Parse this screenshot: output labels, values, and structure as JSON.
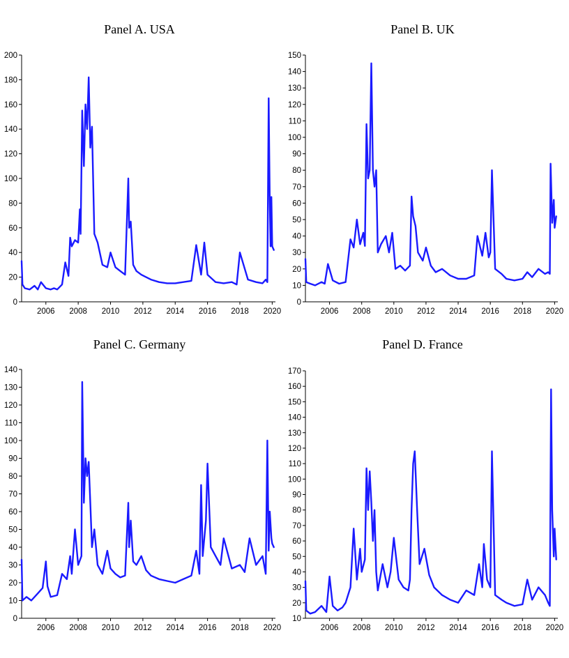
{
  "colors": {
    "series": "#1a1aff",
    "axis": "#000000",
    "background": "#ffffff"
  },
  "chart_data": [
    {
      "type": "line",
      "title": "Panel A. USA",
      "xlim": [
        2004.5,
        2020.2
      ],
      "ylim": [
        0,
        200
      ],
      "yticks": [
        0,
        20,
        40,
        60,
        80,
        100,
        120,
        140,
        160,
        180,
        200
      ],
      "xticks": [
        2006,
        2008,
        2010,
        2012,
        2014,
        2016,
        2018,
        2020
      ],
      "grid": false,
      "series": [
        {
          "x": [
            2004.5,
            2004.55,
            2004.7,
            2005.0,
            2005.3,
            2005.5,
            2005.7,
            2006.0,
            2006.3,
            2006.5,
            2006.7,
            2007.0,
            2007.2,
            2007.4,
            2007.5,
            2007.6,
            2007.8,
            2008.0,
            2008.1,
            2008.15,
            2008.25,
            2008.35,
            2008.45,
            2008.55,
            2008.65,
            2008.75,
            2008.85,
            2009.0,
            2009.2,
            2009.5,
            2009.8,
            2010.0,
            2010.3,
            2010.6,
            2010.9,
            2011.1,
            2011.15,
            2011.25,
            2011.4,
            2011.6,
            2011.9,
            2012.2,
            2012.5,
            2013.0,
            2013.5,
            2014.0,
            2014.5,
            2015.0,
            2015.3,
            2015.6,
            2015.8,
            2016.0,
            2016.5,
            2017.0,
            2017.5,
            2017.8,
            2018.0,
            2018.5,
            2019.0,
            2019.4,
            2019.6,
            2019.7,
            2019.78,
            2019.85,
            2019.9,
            2019.95,
            2020.0,
            2020.1
          ],
          "values": [
            33,
            14,
            11,
            10,
            13,
            10,
            16,
            11,
            10,
            11,
            10,
            14,
            32,
            21,
            52,
            45,
            50,
            48,
            75,
            55,
            155,
            110,
            160,
            140,
            182,
            125,
            142,
            55,
            48,
            30,
            28,
            40,
            28,
            25,
            22,
            100,
            60,
            65,
            30,
            25,
            22,
            20,
            18,
            16,
            15,
            15,
            16,
            17,
            46,
            22,
            48,
            22,
            16,
            15,
            16,
            14,
            40,
            18,
            16,
            15,
            18,
            16,
            165,
            80,
            45,
            85,
            45,
            42
          ]
        }
      ]
    },
    {
      "type": "line",
      "title": "Panel B. UK",
      "xlim": [
        2004.5,
        2020.2
      ],
      "ylim": [
        0,
        150
      ],
      "yticks": [
        0,
        10,
        20,
        30,
        40,
        50,
        60,
        70,
        80,
        90,
        100,
        110,
        120,
        130,
        140,
        150
      ],
      "xticks": [
        2006,
        2008,
        2010,
        2012,
        2014,
        2016,
        2018,
        2020
      ],
      "grid": false,
      "series": [
        {
          "x": [
            2004.5,
            2004.55,
            2004.8,
            2005.1,
            2005.5,
            2005.7,
            2005.9,
            2006.2,
            2006.6,
            2007.0,
            2007.3,
            2007.5,
            2007.7,
            2007.9,
            2008.1,
            2008.2,
            2008.3,
            2008.4,
            2008.5,
            2008.6,
            2008.7,
            2008.8,
            2008.9,
            2009.0,
            2009.2,
            2009.5,
            2009.7,
            2009.9,
            2010.1,
            2010.4,
            2010.7,
            2011.0,
            2011.1,
            2011.2,
            2011.35,
            2011.5,
            2011.8,
            2012.0,
            2012.3,
            2012.6,
            2013.0,
            2013.5,
            2014.0,
            2014.5,
            2015.0,
            2015.2,
            2015.5,
            2015.7,
            2015.9,
            2016.0,
            2016.1,
            2016.3,
            2016.7,
            2017.0,
            2017.5,
            2018.0,
            2018.3,
            2018.6,
            2019.0,
            2019.4,
            2019.6,
            2019.7,
            2019.75,
            2019.85,
            2019.95,
            2020.0,
            2020.1
          ],
          "values": [
            26,
            12,
            11,
            10,
            12,
            11,
            23,
            13,
            11,
            12,
            38,
            33,
            50,
            35,
            42,
            34,
            108,
            75,
            80,
            145,
            80,
            70,
            80,
            30,
            35,
            40,
            30,
            42,
            20,
            22,
            19,
            22,
            64,
            52,
            46,
            30,
            25,
            33,
            22,
            18,
            20,
            16,
            14,
            14,
            16,
            40,
            28,
            42,
            27,
            30,
            80,
            20,
            17,
            14,
            13,
            14,
            18,
            15,
            20,
            17,
            18,
            17,
            84,
            48,
            62,
            45,
            52
          ]
        }
      ]
    },
    {
      "type": "line",
      "title": "Panel C. Germany",
      "xlim": [
        2004.5,
        2020.2
      ],
      "ylim": [
        0,
        140
      ],
      "yticks": [
        0,
        10,
        20,
        30,
        40,
        50,
        60,
        70,
        80,
        90,
        100,
        110,
        120,
        130,
        140
      ],
      "xticks": [
        2006,
        2008,
        2010,
        2012,
        2014,
        2016,
        2018,
        2020
      ],
      "grid": false,
      "series": [
        {
          "x": [
            2004.5,
            2004.55,
            2004.8,
            2005.1,
            2005.5,
            2005.8,
            2006.0,
            2006.1,
            2006.3,
            2006.7,
            2007.0,
            2007.3,
            2007.5,
            2007.6,
            2007.8,
            2008.0,
            2008.2,
            2008.25,
            2008.35,
            2008.45,
            2008.55,
            2008.65,
            2008.75,
            2008.85,
            2009.0,
            2009.2,
            2009.5,
            2009.8,
            2010.0,
            2010.3,
            2010.6,
            2010.9,
            2011.1,
            2011.15,
            2011.25,
            2011.4,
            2011.6,
            2011.9,
            2012.2,
            2012.5,
            2013.0,
            2013.5,
            2014.0,
            2014.5,
            2015.0,
            2015.3,
            2015.5,
            2015.6,
            2015.7,
            2015.9,
            2016.0,
            2016.2,
            2016.5,
            2016.8,
            2017.0,
            2017.5,
            2018.0,
            2018.3,
            2018.6,
            2019.0,
            2019.4,
            2019.6,
            2019.7,
            2019.78,
            2019.85,
            2019.95,
            2020.0,
            2020.1
          ],
          "values": [
            33,
            10,
            12,
            10,
            14,
            17,
            32,
            18,
            12,
            13,
            25,
            22,
            35,
            25,
            50,
            30,
            35,
            133,
            65,
            90,
            80,
            88,
            65,
            40,
            50,
            30,
            25,
            38,
            28,
            25,
            23,
            24,
            65,
            40,
            55,
            32,
            30,
            35,
            27,
            24,
            22,
            21,
            20,
            22,
            24,
            38,
            25,
            75,
            35,
            55,
            87,
            40,
            35,
            30,
            45,
            28,
            30,
            26,
            45,
            30,
            35,
            25,
            100,
            38,
            60,
            45,
            42,
            40
          ]
        }
      ]
    },
    {
      "type": "line",
      "title": "Panel D. France",
      "xlim": [
        2004.5,
        2020.2
      ],
      "ylim": [
        10,
        170
      ],
      "yticks": [
        10,
        20,
        30,
        40,
        50,
        60,
        70,
        80,
        90,
        100,
        110,
        120,
        130,
        140,
        150,
        160,
        170
      ],
      "xticks": [
        2006,
        2008,
        2010,
        2012,
        2014,
        2016,
        2018,
        2020
      ],
      "grid": false,
      "series": [
        {
          "x": [
            2004.5,
            2004.55,
            2004.8,
            2005.1,
            2005.5,
            2005.8,
            2006.0,
            2006.2,
            2006.5,
            2006.8,
            2007.0,
            2007.3,
            2007.5,
            2007.7,
            2007.9,
            2008.0,
            2008.2,
            2008.3,
            2008.4,
            2008.5,
            2008.6,
            2008.7,
            2008.8,
            2008.9,
            2009.0,
            2009.3,
            2009.6,
            2009.8,
            2010.0,
            2010.3,
            2010.6,
            2010.9,
            2011.0,
            2011.1,
            2011.2,
            2011.3,
            2011.45,
            2011.6,
            2011.9,
            2012.2,
            2012.5,
            2013.0,
            2013.5,
            2014.0,
            2014.5,
            2015.0,
            2015.3,
            2015.5,
            2015.6,
            2015.8,
            2016.0,
            2016.1,
            2016.3,
            2016.7,
            2017.0,
            2017.5,
            2018.0,
            2018.3,
            2018.6,
            2019.0,
            2019.4,
            2019.6,
            2019.7,
            2019.78,
            2019.85,
            2019.95,
            2020.0,
            2020.1
          ],
          "values": [
            34,
            15,
            13,
            14,
            18,
            14,
            37,
            18,
            15,
            17,
            20,
            30,
            68,
            35,
            55,
            40,
            48,
            107,
            80,
            105,
            85,
            60,
            80,
            40,
            28,
            45,
            30,
            40,
            62,
            35,
            30,
            28,
            35,
            80,
            110,
            118,
            80,
            45,
            55,
            38,
            30,
            25,
            22,
            20,
            28,
            25,
            45,
            30,
            58,
            35,
            30,
            118,
            25,
            22,
            20,
            18,
            19,
            35,
            22,
            30,
            25,
            20,
            18,
            158,
            80,
            50,
            68,
            48
          ]
        }
      ]
    }
  ]
}
